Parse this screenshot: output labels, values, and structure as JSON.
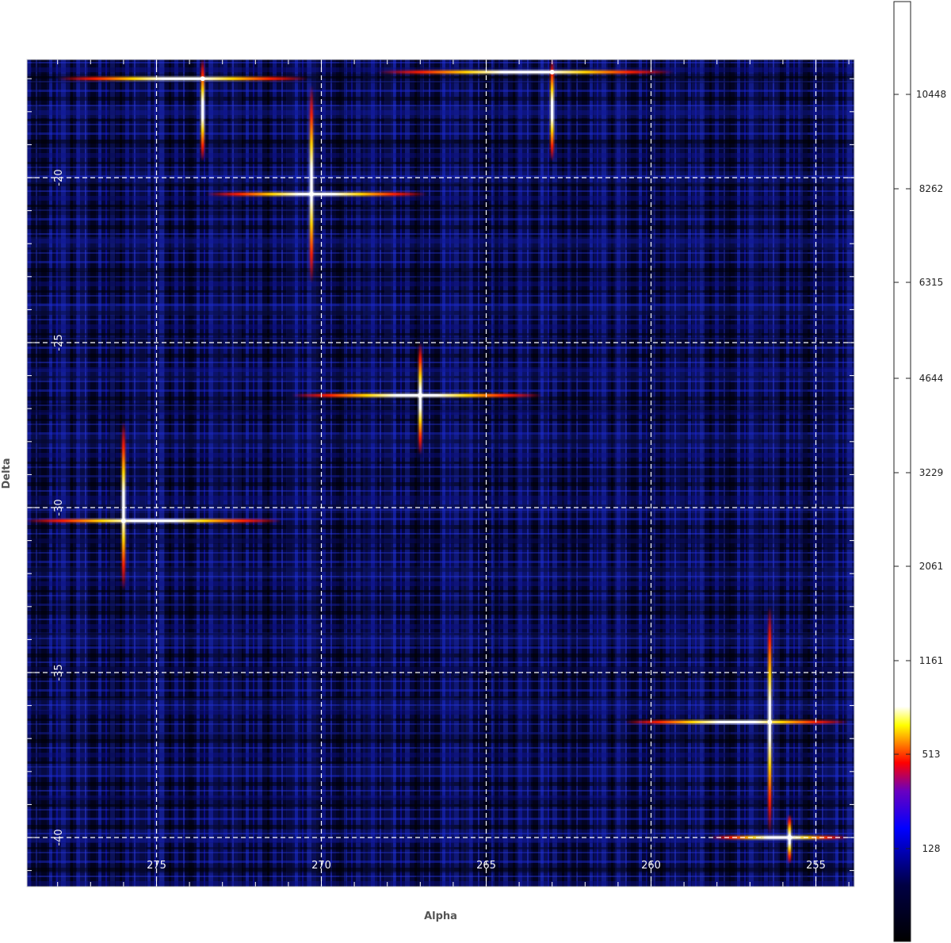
{
  "chart_data": {
    "type": "heatmap",
    "title": "",
    "xlabel": "Alpha",
    "ylabel": "Delta",
    "x_axis": {
      "range": [
        279,
        254
      ],
      "direction": "decreasing",
      "major_ticks": [
        275,
        270,
        265,
        260,
        255
      ],
      "minor_step": 1
    },
    "y_axis": {
      "range": [
        -41.2,
        -16.4
      ],
      "major_ticks": [
        -20,
        -25,
        -30,
        -35,
        -40
      ],
      "minor_step": 1
    },
    "grid": "dashed white at major ticks",
    "colorscale": {
      "name": "heat (black-blue-red-yellow-white), non-linear",
      "tick_values": [
        128,
        513,
        1161,
        2061,
        3229,
        4644,
        6315,
        8262,
        10448
      ],
      "tick_labels": [
        "128",
        "513",
        "1161",
        "2061",
        "3229",
        "4644",
        "6315",
        "8262",
        "10448"
      ]
    },
    "background_noise": "dense blue streaky texture (low values)",
    "hotspots": [
      {
        "alpha": 273.6,
        "delta": -17.0,
        "h_extent": [
          278.0,
          270.4
        ],
        "v_extent": [
          -16.4,
          -19.5
        ]
      },
      {
        "alpha": 270.3,
        "delta": -20.5,
        "h_extent": [
          273.5,
          266.8
        ],
        "v_extent": [
          -17.2,
          -23.2
        ]
      },
      {
        "alpha": 263.0,
        "delta": -16.8,
        "h_extent": [
          268.3,
          259.3
        ],
        "v_extent": [
          -16.4,
          -19.5
        ]
      },
      {
        "alpha": 267.0,
        "delta": -26.6,
        "h_extent": [
          270.9,
          263.3
        ],
        "v_extent": [
          -25.0,
          -28.4
        ]
      },
      {
        "alpha": 276.0,
        "delta": -30.4,
        "h_extent": [
          279.0,
          271.2
        ],
        "v_extent": [
          -27.4,
          -32.5
        ]
      },
      {
        "alpha": 256.4,
        "delta": -36.5,
        "h_extent": [
          260.8,
          254.0
        ],
        "v_extent": [
          -33.0,
          -39.9
        ]
      },
      {
        "alpha": 255.8,
        "delta": -40.0,
        "h_extent": [
          258.2,
          254.0
        ],
        "v_extent": [
          -39.3,
          -40.8
        ]
      }
    ]
  }
}
